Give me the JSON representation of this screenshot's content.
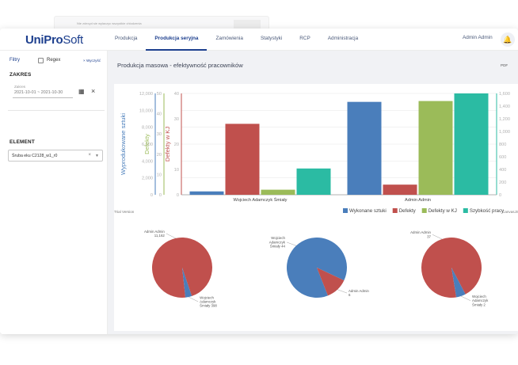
{
  "ghost_bar": {
    "text": "Nie zdecyd sie wylaczyc wszystkie chlodzenia"
  },
  "app": {
    "logo_part1": "UniPro",
    "logo_part2": "Soft"
  },
  "nav": {
    "items": [
      "Produkcja",
      "Produkcja seryjna",
      "Zamówienia",
      "Statystyki",
      "RCP",
      "Administracja"
    ],
    "active_index": 1
  },
  "user": {
    "name": "Admin Admin",
    "bell_icon": "bell-icon"
  },
  "sidebar": {
    "filters_label": "Filtry",
    "regex_label": "Regex",
    "clear_label": "× Wyczyść",
    "range_heading": "ZAKRES",
    "range_small_label": "Zakres",
    "range_value": "2021-10-01 ~ 2021-10-30",
    "element_heading": "ELEMENT",
    "element_value": "Śruba eku C2128_w1_r0",
    "clear_icon": "close-icon",
    "calendar_icon": "calendar-icon",
    "caret_icon": "caret-down-icon"
  },
  "panel": {
    "title": "Produkcja masowa - efektywność pracowników",
    "pdf_label": "PDF"
  },
  "trial_label": "Trial Version",
  "credit_label": "CanvasJS.com",
  "colors": {
    "blue": "#4a7ebb",
    "red": "#c0504d",
    "green": "#9bbb59",
    "teal": "#2bbba3",
    "accent": "#1d3f8e"
  },
  "chart_data": [
    {
      "type": "bar",
      "categories": [
        "Wojciech Adamczyk Śmiały",
        "Admin Admin"
      ],
      "series": [
        {
          "name": "Wykonane sztuki",
          "axis": "y1",
          "color": "#4a7ebb",
          "values": [
            400,
            11000
          ]
        },
        {
          "name": "Defekty",
          "axis": "y2",
          "color": "#c0504d",
          "values": [
            35,
            5
          ]
        },
        {
          "name": "Defekty w KJ",
          "axis": "y3",
          "color": "#9bbb59",
          "values": [
            2,
            37
          ]
        },
        {
          "name": "Szybkość pracy",
          "axis": "y4",
          "color": "#2bbba3",
          "values": [
            415,
            1600
          ]
        }
      ],
      "axes": {
        "y1": {
          "title": "Wyprodukowane sztuki",
          "min": 0,
          "max": 12000,
          "ticks": [
            "0",
            "2,000",
            "4,000",
            "6,000",
            "8,000",
            "10,000",
            "12,000"
          ]
        },
        "y2": {
          "title": "Defekty",
          "min": 0,
          "max": 50,
          "ticks": [
            "0",
            "10",
            "20",
            "30",
            "40",
            "50"
          ]
        },
        "y3": {
          "title": "Defekty w KJ",
          "min": 0,
          "max": 40,
          "ticks": [
            "0",
            "10",
            "20",
            "30",
            "40"
          ]
        },
        "y4": {
          "title": "",
          "min": 0,
          "max": 1600,
          "ticks": [
            "0",
            "200",
            "400",
            "600",
            "800",
            "1,000",
            "1,200",
            "1,400",
            "1,600"
          ]
        }
      },
      "legend_position": "bottom-right"
    },
    {
      "type": "pie",
      "slices": [
        {
          "label": "Admin Admin",
          "value": 11162,
          "display": "Admin Admin 11,162",
          "color": "#c0504d"
        },
        {
          "label": "Wojciech Adamczyk Śmiały",
          "value": 398,
          "display": "Wojciech Adamczyk Śmiały 398",
          "color": "#4a7ebb"
        }
      ]
    },
    {
      "type": "pie",
      "slices": [
        {
          "label": "Wojciech Adamczyk Śmiały",
          "value": 44,
          "display": "Wojciech Adamczyk Śmiały 44",
          "color": "#4a7ebb"
        },
        {
          "label": "Admin Admin",
          "value": 6,
          "display": "Admin Admin 6",
          "color": "#c0504d"
        }
      ]
    },
    {
      "type": "pie",
      "slices": [
        {
          "label": "Admin Admin",
          "value": 37,
          "display": "Admin Admin 37",
          "color": "#c0504d"
        },
        {
          "label": "Wojciech Adamczyk Śmiały",
          "value": 2,
          "display": "Wojciech Adamczyk Śmiały 2",
          "color": "#4a7ebb"
        }
      ]
    }
  ]
}
